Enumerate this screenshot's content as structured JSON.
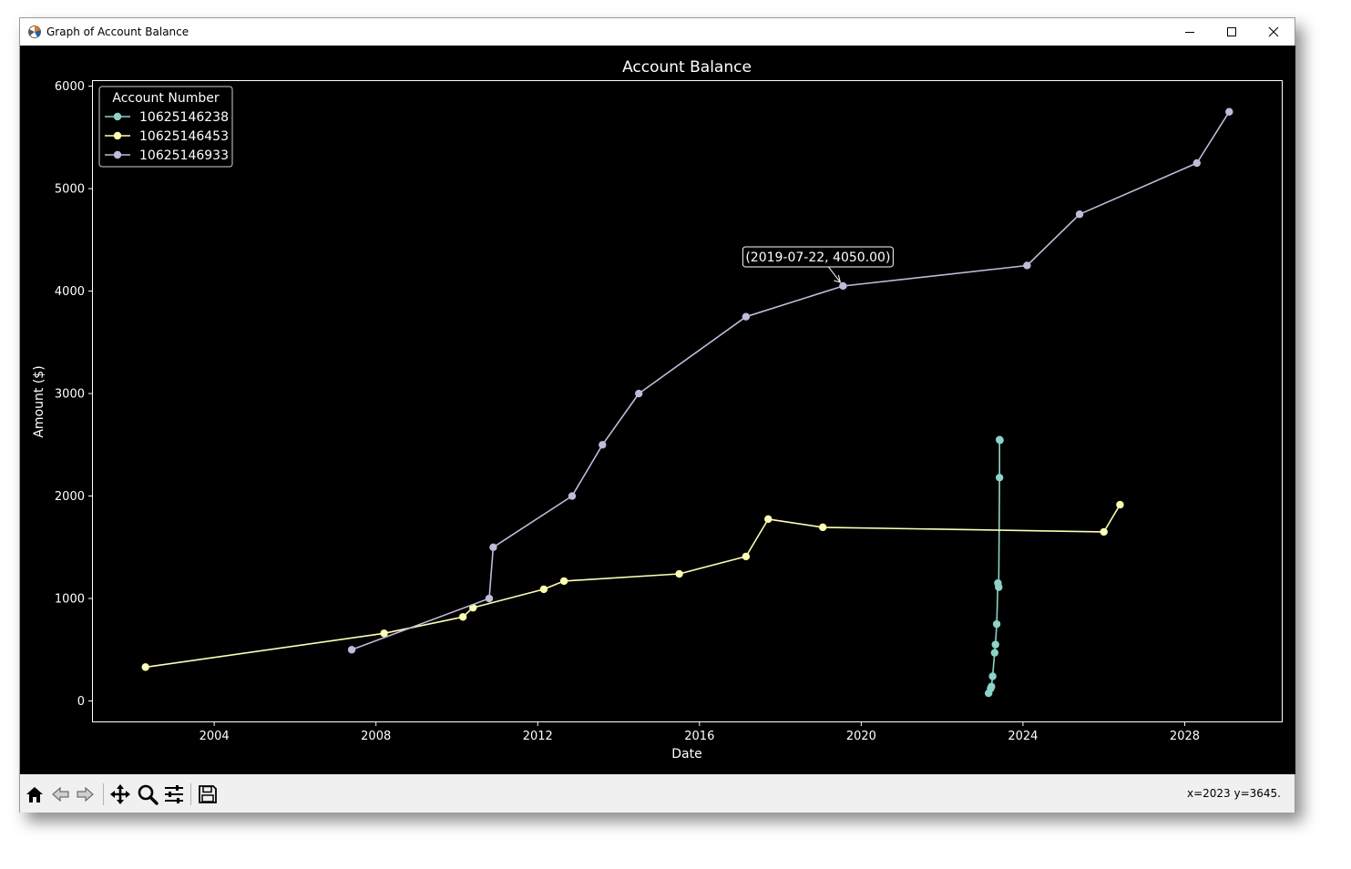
{
  "window": {
    "title": "Graph of Account Balance"
  },
  "status": {
    "coords": "x=2023 y=3645."
  },
  "toolbar": {
    "icons": [
      "home-icon",
      "back-arrow-icon",
      "forward-arrow-icon",
      "pan-icon",
      "zoom-icon",
      "configure-subplots-icon",
      "save-icon"
    ]
  },
  "colors": {
    "background": "#000000",
    "series_teal": "#8dd3c7",
    "series_yellow": "#feffb3",
    "series_lavender": "#bfbbd9"
  },
  "chart_data": {
    "type": "line",
    "title": "Account Balance",
    "xlabel": "Date",
    "ylabel": "Amount ($)",
    "xlim": [
      2001.0,
      2030.4
    ],
    "ylim": [
      -200,
      6050
    ],
    "xticks": [
      2004,
      2008,
      2012,
      2016,
      2020,
      2024,
      2028
    ],
    "xtick_labels": [
      "2004",
      "2008",
      "2012",
      "2016",
      "2020",
      "2024",
      "2028"
    ],
    "yticks": [
      0,
      1000,
      2000,
      3000,
      4000,
      5000,
      6000
    ],
    "ytick_labels": [
      "0",
      "1000",
      "2000",
      "3000",
      "4000",
      "5000",
      "6000"
    ],
    "legend": {
      "title": "Account Number",
      "location": "upper-left"
    },
    "series": [
      {
        "name": "10625146238",
        "color": "#8dd3c7",
        "x": [
          2023.15,
          2023.2,
          2023.22,
          2023.25,
          2023.3,
          2023.32,
          2023.35,
          2023.38,
          2023.4,
          2023.42,
          2023.42,
          2023.43
        ],
        "y": [
          75,
          120,
          140,
          240,
          470,
          550,
          750,
          1150,
          1110,
          2180,
          2550,
          2545
        ]
      },
      {
        "name": "10625146453",
        "color": "#feffb3",
        "x": [
          2002.3,
          2008.2,
          2010.15,
          2010.4,
          2012.15,
          2012.65,
          2015.5,
          2017.15,
          2017.7,
          2019.05,
          2026.0,
          2026.4
        ],
        "y": [
          330,
          660,
          820,
          910,
          1090,
          1170,
          1240,
          1410,
          1775,
          1695,
          1650,
          1915
        ]
      },
      {
        "name": "10625146933",
        "color": "#bfbbd9",
        "x": [
          2007.4,
          2010.8,
          2010.9,
          2012.85,
          2013.6,
          2014.5,
          2017.15,
          2019.55,
          2024.1,
          2025.4,
          2028.3,
          2029.1
        ],
        "y": [
          500,
          1000,
          1500,
          2000,
          2500,
          3000,
          3750,
          4050,
          4250,
          4750,
          5250,
          5750
        ]
      }
    ],
    "annotation": {
      "text": "(2019-07-22, 4050.00)",
      "series": 2,
      "x": 2019.55,
      "y": 4050
    }
  }
}
